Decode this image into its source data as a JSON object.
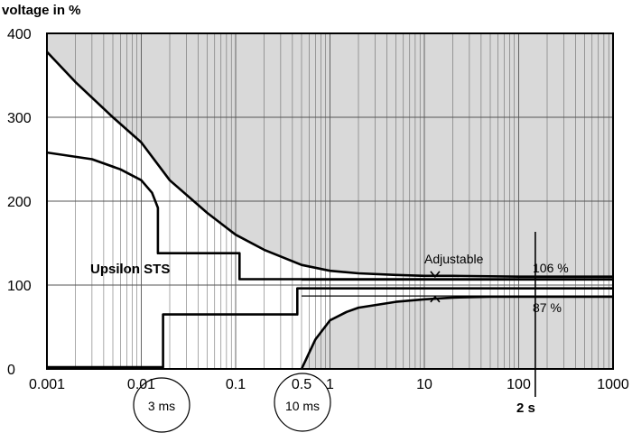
{
  "chart_data": {
    "type": "line",
    "title": "",
    "ylabel": "voltage in %",
    "xlabel": "",
    "x_scale": "log",
    "xlim": [
      0.001,
      1000
    ],
    "ylim": [
      0,
      400
    ],
    "grid": true,
    "x_ticks": [
      {
        "value": 0.001,
        "label": "0.001"
      },
      {
        "value": 0.01,
        "label": "0.01"
      },
      {
        "value": 0.1,
        "label": "0.1"
      },
      {
        "value": 0.5,
        "label": "0.5"
      },
      {
        "value": 1,
        "label": "1"
      },
      {
        "value": 10,
        "label": "10"
      },
      {
        "value": 100,
        "label": "100"
      },
      {
        "value": 1000,
        "label": "1000"
      }
    ],
    "y_ticks": [
      {
        "value": 0,
        "label": "0"
      },
      {
        "value": 100,
        "label": "100"
      },
      {
        "value": 200,
        "label": "200"
      },
      {
        "value": 300,
        "label": "300"
      },
      {
        "value": 400,
        "label": "400"
      }
    ],
    "series": [
      {
        "name": "upper-tolerance-curve",
        "points": [
          [
            0.001,
            378
          ],
          [
            0.002,
            342
          ],
          [
            0.005,
            300
          ],
          [
            0.01,
            270
          ],
          [
            0.02,
            225
          ],
          [
            0.05,
            186
          ],
          [
            0.1,
            160
          ],
          [
            0.2,
            142
          ],
          [
            0.5,
            124
          ],
          [
            1,
            117
          ],
          [
            2,
            114
          ],
          [
            5,
            112
          ],
          [
            10,
            111
          ],
          [
            20,
            111
          ],
          [
            100,
            110
          ],
          [
            1000,
            110
          ]
        ]
      },
      {
        "name": "lower-tolerance-curve",
        "points": [
          [
            0.5,
            0
          ],
          [
            0.55,
            10
          ],
          [
            0.7,
            35
          ],
          [
            1,
            58
          ],
          [
            1.5,
            68
          ],
          [
            2,
            73
          ],
          [
            5,
            80
          ],
          [
            10,
            83
          ],
          [
            20,
            85
          ],
          [
            50,
            86
          ],
          [
            100,
            86
          ],
          [
            1000,
            86
          ]
        ]
      },
      {
        "name": "upsilon-upper",
        "points": [
          [
            0.001,
            258
          ],
          [
            0.003,
            250
          ],
          [
            0.006,
            238
          ],
          [
            0.01,
            225
          ],
          [
            0.013,
            210
          ],
          [
            0.015,
            192
          ],
          [
            0.015,
            138
          ],
          [
            0.11,
            138
          ],
          [
            0.11,
            107
          ],
          [
            1000,
            107
          ]
        ]
      },
      {
        "name": "upsilon-lower",
        "points": [
          [
            0.001,
            2
          ],
          [
            0.017,
            2
          ],
          [
            0.017,
            65
          ],
          [
            0.45,
            65
          ],
          [
            0.45,
            96
          ],
          [
            1000,
            96
          ]
        ]
      }
    ],
    "tolerance_band": {
      "upper": 106,
      "lower": 87,
      "from_x": 0.5,
      "to_x": 1000
    },
    "marker_line": {
      "x": 150,
      "label": "2 s"
    },
    "adjustable_x": 13,
    "annotations": {
      "series_label": "Upsilon STS",
      "adjustable": "Adjustable",
      "upper_pct": "106 %",
      "lower_pct": "87 %",
      "circle_left": "3 ms",
      "circle_right": "10 ms"
    }
  }
}
